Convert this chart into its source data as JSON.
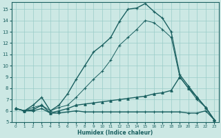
{
  "xlabel": "Humidex (Indice chaleur)",
  "xlim": [
    -0.5,
    23.5
  ],
  "ylim": [
    5,
    15.6
  ],
  "yticks": [
    5,
    6,
    7,
    8,
    9,
    10,
    11,
    12,
    13,
    14,
    15
  ],
  "xticks": [
    0,
    1,
    2,
    3,
    4,
    5,
    6,
    7,
    8,
    9,
    10,
    11,
    12,
    13,
    14,
    15,
    16,
    17,
    18,
    19,
    20,
    21,
    22,
    23
  ],
  "bg_color": "#cce8e4",
  "line_color": "#1a6060",
  "grid_color": "#99ccc8",
  "series": [
    {
      "x": [
        0,
        1,
        2,
        3,
        4,
        5,
        6,
        7,
        8,
        9,
        10,
        11,
        12,
        13,
        14,
        15,
        16,
        17,
        18,
        19,
        20,
        21,
        22,
        23
      ],
      "y": [
        6.2,
        6.0,
        6.5,
        7.2,
        6.0,
        6.5,
        7.5,
        8.8,
        10.0,
        11.2,
        11.8,
        12.5,
        13.9,
        15.0,
        15.1,
        15.5,
        14.8,
        14.2,
        13.0,
        9.2,
        8.2,
        7.2,
        6.3,
        5.2
      ],
      "marker": "+",
      "lw": 1.0
    },
    {
      "x": [
        0,
        1,
        2,
        3,
        4,
        5,
        6,
        7,
        8,
        9,
        10,
        11,
        12,
        13,
        14,
        15,
        16,
        17,
        18,
        19,
        20,
        21,
        22,
        23
      ],
      "y": [
        6.2,
        6.0,
        6.3,
        6.5,
        6.0,
        6.3,
        6.5,
        7.2,
        8.0,
        8.8,
        9.5,
        10.5,
        11.8,
        12.5,
        13.2,
        14.0,
        13.8,
        13.2,
        12.5,
        9.0,
        8.0,
        7.0,
        6.3,
        5.2
      ],
      "marker": "+",
      "lw": 0.7
    },
    {
      "x": [
        0,
        1,
        2,
        3,
        4,
        5,
        6,
        7,
        8,
        9,
        10,
        11,
        12,
        13,
        14,
        15,
        16,
        17,
        18,
        19,
        20,
        21,
        22,
        23
      ],
      "y": [
        6.2,
        6.0,
        6.1,
        6.5,
        5.8,
        6.0,
        6.2,
        6.5,
        6.6,
        6.7,
        6.8,
        6.9,
        7.0,
        7.1,
        7.2,
        7.3,
        7.5,
        7.6,
        7.8,
        9.0,
        8.0,
        7.2,
        6.3,
        5.2
      ],
      "marker": "^",
      "lw": 1.0
    },
    {
      "x": [
        0,
        1,
        2,
        3,
        4,
        5,
        6,
        7,
        8,
        9,
        10,
        11,
        12,
        13,
        14,
        15,
        16,
        17,
        18,
        19,
        20,
        21,
        22,
        23
      ],
      "y": [
        6.2,
        6.0,
        6.0,
        6.2,
        5.8,
        5.8,
        5.9,
        6.0,
        5.9,
        5.9,
        5.9,
        5.9,
        5.9,
        5.9,
        5.9,
        5.9,
        5.9,
        5.9,
        5.9,
        5.9,
        5.8,
        5.8,
        6.0,
        5.2
      ],
      "marker": "+",
      "lw": 1.0
    }
  ]
}
